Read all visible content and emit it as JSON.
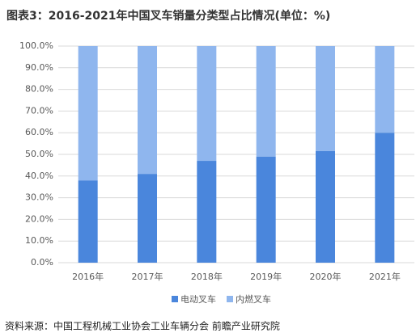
{
  "chart_data": {
    "type": "stacked_bar",
    "title": "图表3：2016-2021年中国叉车销量分类型占比情况(单位：%)",
    "source": "资料来源：中国工程机械工业协会工业车辆分会 前瞻产业研究院",
    "categories": [
      "2016年",
      "2017年",
      "2018年",
      "2019年",
      "2020年",
      "2021年"
    ],
    "series": [
      {
        "name": "电动叉车",
        "color": "#4a86dc",
        "values": [
          38,
          41,
          47,
          49,
          51.5,
          60
        ]
      },
      {
        "name": "内燃叉车",
        "color": "#8fb6ee",
        "values": [
          62,
          59,
          53,
          51,
          48.5,
          40
        ]
      }
    ],
    "ylim": [
      0,
      100
    ],
    "yticks": [
      {
        "value": 0,
        "label": "0.0%"
      },
      {
        "value": 10,
        "label": "10.0%"
      },
      {
        "value": 20,
        "label": "20.0%"
      },
      {
        "value": 30,
        "label": "30.0%"
      },
      {
        "value": 40,
        "label": "40.0%"
      },
      {
        "value": 50,
        "label": "50.0%"
      },
      {
        "value": 60,
        "label": "60.0%"
      },
      {
        "value": 70,
        "label": "70.0%"
      },
      {
        "value": 80,
        "label": "80.0%"
      },
      {
        "value": 90,
        "label": "90.0%"
      },
      {
        "value": 100,
        "label": "100.0%"
      }
    ],
    "grid": true
  }
}
